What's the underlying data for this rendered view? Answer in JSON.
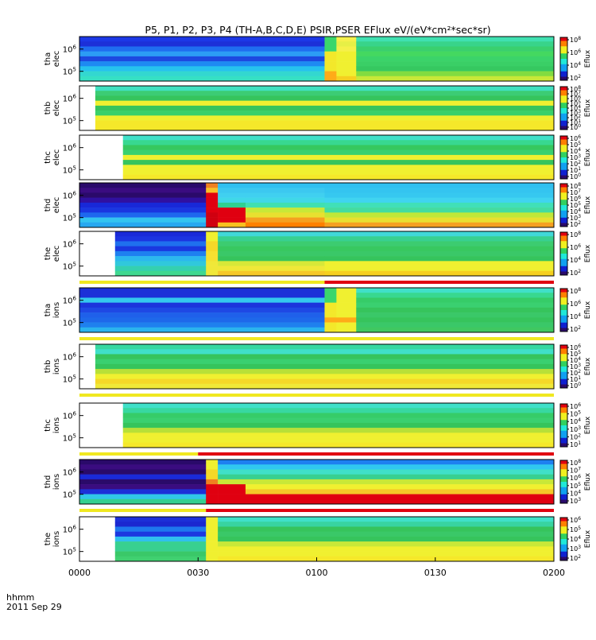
{
  "chart_data": {
    "type": "heatmap",
    "title": "P5, P1, P2, P3, P4 (TH-A,B,C,D,E) PSIR,PSER EFlux eV/(eV*cm²*sec*sr)",
    "x_ticks": [
      "0000",
      "0030",
      "0100",
      "0130",
      "0200"
    ],
    "x_range_hhmm": [
      "0000",
      "0200"
    ],
    "x_corner_label": "hhmm",
    "x_date_label": "2011 Sep 29",
    "colorbar_label": "Eflux",
    "colormap": [
      "#2a0a6a",
      "#1020d0",
      "#10a0f0",
      "#20e8d8",
      "#30d060",
      "#f0f020",
      "#ff8000",
      "#e00010"
    ],
    "panels": [
      {
        "probe": "tha",
        "species": "elec",
        "ytick_exponents": [
          6,
          5
        ],
        "colorbar_exponents": [
          8,
          6,
          4,
          2
        ],
        "data_start_min": 0,
        "segments": [
          {
            "from_min": 0,
            "to_min": 62,
            "bands": [
              "#1c38e6",
              "#1c30d8",
              "#1f6df0",
              "#2c9cf5",
              "#1d48e0",
              "#1e8af2",
              "#26c2ee",
              "#33d7d0",
              "#36e0c4"
            ]
          },
          {
            "from_min": 62,
            "to_min": 65,
            "bands": [
              "#3ad66c",
              "#3ad66c",
              "#3ad66c",
              "#f3e82a",
              "#f3e82a",
              "#f3e82a",
              "#f3e82a",
              "#ffab18",
              "#ffab18"
            ]
          },
          {
            "from_min": 65,
            "to_min": 70,
            "bands": [
              "#f5f04a",
              "#e7ef46",
              "#f5f04a",
              "#f0f030",
              "#f0f030",
              "#f0f030",
              "#f0f030",
              "#f0f030",
              "#f5d020"
            ]
          },
          {
            "from_min": 70,
            "to_min": 120,
            "bands": [
              "#40e0b0",
              "#38d48a",
              "#3ad06e",
              "#44d860",
              "#3bd36a",
              "#3acf66",
              "#36c860",
              "#82dc40",
              "#c8e838"
            ]
          }
        ]
      },
      {
        "probe": "thb",
        "species": "elec",
        "ytick_exponents": [
          6,
          5
        ],
        "colorbar_exponents": [
          8,
          7,
          6,
          5,
          4,
          3,
          2,
          1,
          0
        ],
        "data_start_min": 4,
        "segments": [
          {
            "from_min": 4,
            "to_min": 120,
            "bands": [
              "#40e0c0",
              "#3ccc74",
              "#36c45c",
              "#f0f030",
              "#36c45c",
              "#3ad06a",
              "#f0f030",
              "#f5e82a",
              "#f5e82a"
            ]
          }
        ]
      },
      {
        "probe": "thc",
        "species": "elec",
        "ytick_exponents": [
          6,
          5
        ],
        "colorbar_exponents": [
          6,
          5,
          4,
          3,
          2,
          1,
          0
        ],
        "data_start_min": 11,
        "segments": [
          {
            "from_min": 11,
            "to_min": 120,
            "bands": [
              "#40e0c8",
              "#38d890",
              "#36c85e",
              "#38d070",
              "#f0f030",
              "#36c45c",
              "#f0f030",
              "#f0f030",
              "#f5e82a"
            ]
          }
        ]
      },
      {
        "probe": "thd",
        "species": "elec",
        "ytick_exponents": [
          6,
          5
        ],
        "colorbar_exponents": [
          8,
          7,
          6,
          5,
          4,
          3,
          2
        ],
        "data_start_min": 0,
        "segments": [
          {
            "from_min": 0,
            "to_min": 32,
            "bands": [
              "#2a0a6a",
              "#3a0c80",
              "#2a0a6a",
              "#3010a0",
              "#1828d8",
              "#1a36e0",
              "#1e68ee",
              "#34c4f0",
              "#28a8f0"
            ]
          },
          {
            "from_min": 32,
            "to_min": 35,
            "bands": [
              "#f08020",
              "#f8c028",
              "#e00010",
              "#e00010",
              "#e00010",
              "#e00010",
              "#d00010",
              "#d00010",
              "#d00010"
            ]
          },
          {
            "from_min": 35,
            "to_min": 42,
            "bands": [
              "#30c0f0",
              "#3cc8f0",
              "#40d0f0",
              "#40d8e8",
              "#30d090",
              "#e00010",
              "#e00010",
              "#e00010",
              "#f8c020"
            ]
          },
          {
            "from_min": 42,
            "to_min": 62,
            "bands": [
              "#30c0f0",
              "#3cc8f0",
              "#40d0f0",
              "#40d8e8",
              "#40e0b0",
              "#c8e838",
              "#e8e030",
              "#f5a020",
              "#ff8000"
            ]
          },
          {
            "from_min": 62,
            "to_min": 120,
            "bands": [
              "#30c0f0",
              "#34c4f0",
              "#36c8f0",
              "#40d4f0",
              "#40e0b8",
              "#44dca0",
              "#c0e838",
              "#e8e030",
              "#f5a020"
            ]
          }
        ]
      },
      {
        "probe": "the",
        "species": "elec",
        "ytick_exponents": [
          6,
          5
        ],
        "colorbar_exponents": [
          8,
          6,
          4,
          2
        ],
        "data_start_min": 9,
        "segments": [
          {
            "from_min": 9,
            "to_min": 32,
            "bands": [
              "#1a2ad8",
              "#1c34e0",
              "#1f70ee",
              "#1a38e0",
              "#1e80f0",
              "#2cb8ee",
              "#30c8dc",
              "#34d0b0",
              "#40d890"
            ]
          },
          {
            "from_min": 32,
            "to_min": 35,
            "bands": [
              "#f0f030",
              "#f0f030",
              "#f5d828",
              "#f5d828",
              "#f5e030",
              "#f5e030",
              "#f0e838",
              "#f0e838",
              "#f0e838"
            ]
          },
          {
            "from_min": 35,
            "to_min": 62,
            "bands": [
              "#40d8d8",
              "#38d090",
              "#3ccc70",
              "#38c860",
              "#3ac868",
              "#36c45c",
              "#d8e838",
              "#f0e838",
              "#f5c828"
            ]
          },
          {
            "from_min": 62,
            "to_min": 120,
            "bands": [
              "#40d8d8",
              "#38d090",
              "#3ccc70",
              "#38c860",
              "#3ac868",
              "#36c45c",
              "#f0f030",
              "#f0f030",
              "#f5d020"
            ]
          }
        ],
        "status_bar": [
          {
            "from_min": 0,
            "to_min": 62,
            "color": "#f0e820"
          },
          {
            "from_min": 62,
            "to_min": 120,
            "color": "#e00010"
          }
        ]
      },
      {
        "probe": "tha",
        "species": "ions",
        "ytick_exponents": [
          6,
          5
        ],
        "colorbar_exponents": [
          8,
          6,
          4,
          2
        ],
        "data_start_min": 0,
        "segments": [
          {
            "from_min": 0,
            "to_min": 62,
            "bands": [
              "#1c30d8",
              "#1c30d8",
              "#34c8ee",
              "#1c34dc",
              "#1e48e4",
              "#1f60ea",
              "#1e68ea",
              "#1f80ee",
              "#2ab4ee"
            ]
          },
          {
            "from_min": 62,
            "to_min": 65,
            "bands": [
              "#3ad66c",
              "#3ad66c",
              "#3ad66c",
              "#f3e82a",
              "#f3e82a",
              "#f3e82a",
              "#ffab18",
              "#f3e82a",
              "#f3e82a"
            ]
          },
          {
            "from_min": 65,
            "to_min": 70,
            "bands": [
              "#f0f030",
              "#f0f030",
              "#f0f030",
              "#f0f030",
              "#f0f030",
              "#f0f030",
              "#ffab18",
              "#f0f030",
              "#f0f030"
            ]
          },
          {
            "from_min": 70,
            "to_min": 120,
            "bands": [
              "#40e0c8",
              "#38d890",
              "#36cc68",
              "#3ad070",
              "#36c45c",
              "#3ac868",
              "#36c45c",
              "#3ac868",
              "#40c860"
            ]
          }
        ],
        "status_bar": [
          {
            "from_min": 0,
            "to_min": 120,
            "color": "#f0e820"
          }
        ]
      },
      {
        "probe": "thb",
        "species": "ions",
        "ytick_exponents": [
          6,
          5
        ],
        "colorbar_exponents": [
          6,
          5,
          4,
          3,
          2,
          1,
          0
        ],
        "data_start_min": 4,
        "segments": [
          {
            "from_min": 4,
            "to_min": 120,
            "bands": [
              "#38d8a0",
              "#40e0c8",
              "#36c45c",
              "#3ad070",
              "#36c45c",
              "#b8e038",
              "#f0f030",
              "#f5d828",
              "#f0e838"
            ]
          }
        ],
        "status_bar": [
          {
            "from_min": 0,
            "to_min": 120,
            "color": "#f0e820"
          }
        ]
      },
      {
        "probe": "thc",
        "species": "ions",
        "ytick_exponents": [
          6,
          5
        ],
        "colorbar_exponents": [
          6,
          5,
          4,
          3,
          2,
          1
        ],
        "data_start_min": 11,
        "segments": [
          {
            "from_min": 11,
            "to_min": 120,
            "bands": [
              "#40e0c8",
              "#38d8a0",
              "#36cc68",
              "#3ad070",
              "#36c45c",
              "#b8e038",
              "#f0f030",
              "#f0f030",
              "#f5e82a"
            ]
          }
        ],
        "status_bar": [
          {
            "from_min": 0,
            "to_min": 30,
            "color": "#f0e820"
          },
          {
            "from_min": 30,
            "to_min": 120,
            "color": "#e00010"
          }
        ]
      },
      {
        "probe": "thd",
        "species": "ions",
        "ytick_exponents": [
          6,
          5
        ],
        "colorbar_exponents": [
          8,
          7,
          6,
          5,
          4,
          3
        ],
        "data_start_min": 0,
        "segments": [
          {
            "from_min": 0,
            "to_min": 32,
            "bands": [
              "#2a0a6a",
              "#3a0c80",
              "#2a0a6a",
              "#1a2ad8",
              "#2a0a6a",
              "#3a0c80",
              "#1c30d8",
              "#30c8e8",
              "#34d090"
            ]
          },
          {
            "from_min": 32,
            "to_min": 35,
            "bands": [
              "#f0f030",
              "#f0f030",
              "#f5d828",
              "#f5d828",
              "#f08020",
              "#e00010",
              "#e00010",
              "#e00010",
              "#e00010"
            ]
          },
          {
            "from_min": 35,
            "to_min": 42,
            "bands": [
              "#1e80f0",
              "#30c8f0",
              "#40e0c8",
              "#38d090",
              "#c8e838",
              "#e00010",
              "#e00010",
              "#e00010",
              "#e00010"
            ]
          },
          {
            "from_min": 42,
            "to_min": 120,
            "bands": [
              "#1e80f0",
              "#30c8f0",
              "#40e0c8",
              "#38d090",
              "#c8e838",
              "#f0f030",
              "#f5c828",
              "#e00010",
              "#e00010"
            ]
          }
        ],
        "status_bar": [
          {
            "from_min": 0,
            "to_min": 32,
            "color": "#f0e820"
          },
          {
            "from_min": 32,
            "to_min": 120,
            "color": "#e00010"
          }
        ]
      },
      {
        "probe": "the",
        "species": "ions",
        "ytick_exponents": [
          6,
          5
        ],
        "colorbar_exponents": [
          6,
          5,
          4,
          3,
          2
        ],
        "data_start_min": 9,
        "segments": [
          {
            "from_min": 9,
            "to_min": 32,
            "bands": [
              "#1c30d8",
              "#1a28d0",
              "#1e78ee",
              "#1c38e0",
              "#30c0ee",
              "#38d090",
              "#38d090",
              "#3ac868",
              "#40d070"
            ]
          },
          {
            "from_min": 32,
            "to_min": 35,
            "bands": [
              "#f0f030",
              "#f0f030",
              "#f0f030",
              "#f0f030",
              "#f0f030",
              "#f0f030",
              "#f0f030",
              "#f0f030",
              "#f0f030"
            ]
          },
          {
            "from_min": 35,
            "to_min": 120,
            "bands": [
              "#40e0c8",
              "#38d4a0",
              "#36c45c",
              "#3ac868",
              "#36c45c",
              "#c8e838",
              "#f0f030",
              "#f0f030",
              "#f5e82a"
            ]
          }
        ]
      }
    ]
  }
}
